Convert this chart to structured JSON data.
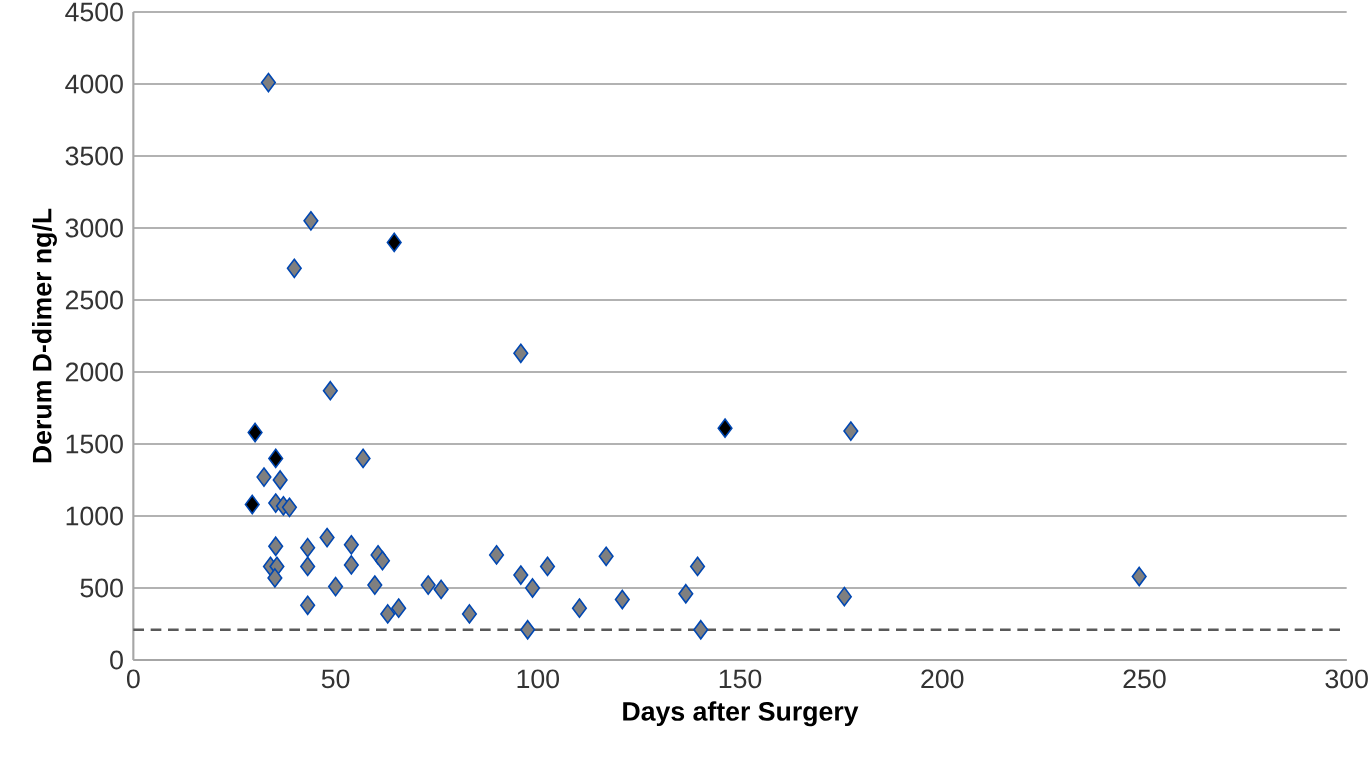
{
  "chart_data": {
    "type": "scatter",
    "xlabel": "Days after Surgery",
    "ylabel": "Derum D-dimer ng/L",
    "xlim": [
      0,
      300
    ],
    "xticks": [
      0,
      50,
      100,
      150,
      200,
      250,
      300
    ],
    "ylim": [
      0,
      4500
    ],
    "yticks": [
      0,
      500,
      1000,
      1500,
      2000,
      2500,
      3000,
      3500,
      4000,
      4500
    ],
    "grid": "y",
    "marker": "diamond",
    "ref_lines": [
      {
        "axis": "y",
        "value": 210,
        "color": "#595959",
        "line_style": "dashed"
      }
    ],
    "series": [
      {
        "color": "#7f7f7f",
        "x": [
          33.4,
          43.9,
          39.8,
          48.7,
          56.8,
          32.3,
          36.3,
          35.2,
          37.1,
          38.6,
          35.2,
          43.1,
          47.9,
          53.9,
          60.5,
          61.6,
          33.9,
          35.5,
          35.0,
          43.1,
          53.9,
          50.0,
          59.7,
          72.9,
          43.1,
          62.9,
          65.6,
          95.8,
          76.1,
          83.1,
          89.8,
          95.8,
          98.7,
          102.4,
          97.5,
          110.3,
          116.9,
          120.9,
          136.6,
          139.5,
          140.3,
          177.4,
          175.8,
          248.7
        ],
        "values": [
          4010,
          3050,
          2720,
          1870,
          1400,
          1270,
          1250,
          1090,
          1070,
          1060,
          790,
          780,
          850,
          800,
          730,
          690,
          650,
          650,
          570,
          650,
          660,
          510,
          520,
          520,
          380,
          320,
          360,
          2130,
          490,
          320,
          730,
          590,
          500,
          650,
          210,
          360,
          720,
          420,
          460,
          650,
          210,
          1590,
          440,
          580
        ]
      },
      {
        "color": "#000000",
        "x": [
          64.5,
          30.1,
          35.2,
          29.4,
          146.3
        ],
        "values": [
          2900,
          1580,
          1400,
          1080,
          1610
        ]
      }
    ]
  }
}
